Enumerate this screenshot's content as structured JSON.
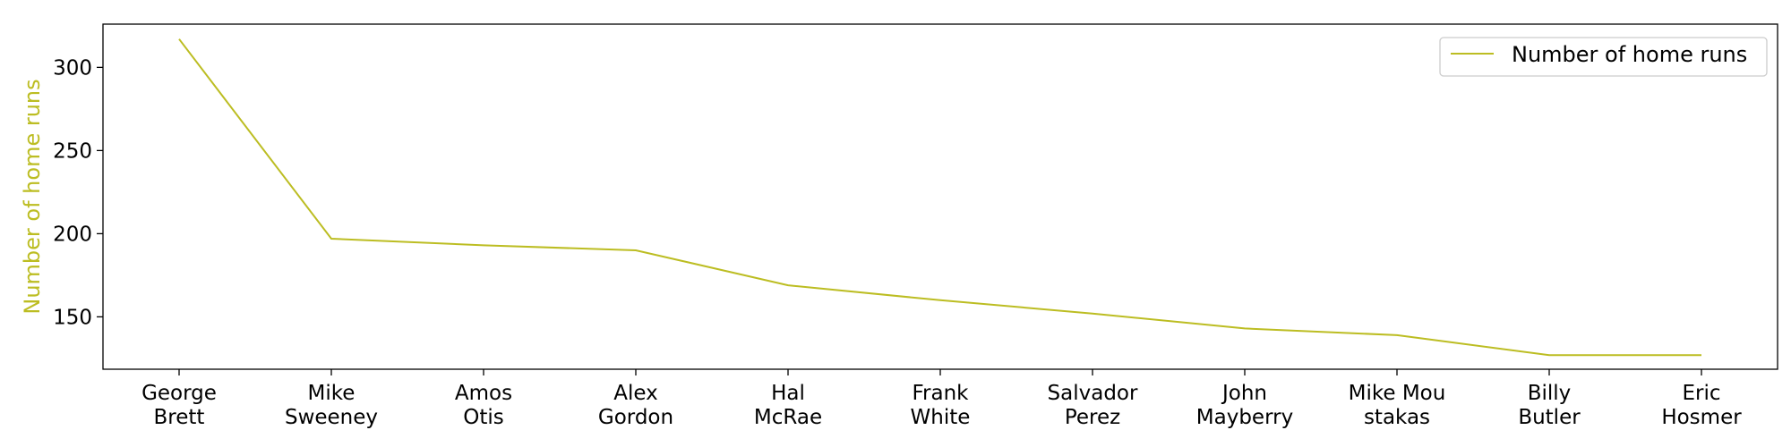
{
  "chart_data": {
    "type": "line",
    "categories": [
      "George\nBrett",
      "Mike\nSweeney",
      "Amos\nOtis",
      "Alex\nGordon",
      "Hal\nMcRae",
      "Frank\nWhite",
      "Salvador\nPerez",
      "John\nMayberry",
      "Mike Mou\nstakas",
      "Billy\nButler",
      "Eric\nHosmer"
    ],
    "series": [
      {
        "name": "Number of home runs",
        "values": [
          317,
          197,
          193,
          190,
          169,
          160,
          152,
          143,
          139,
          127,
          127
        ],
        "color": "#bcbd22"
      }
    ],
    "xlabel": "",
    "ylabel": "Number of home runs",
    "ylabel_color": "#bcbd22",
    "ylim": [
      118.5,
      326
    ],
    "yticks": [
      150,
      200,
      250,
      300
    ],
    "grid": false,
    "legend": {
      "position": "top-right",
      "entries": [
        "Number of home runs"
      ]
    }
  }
}
